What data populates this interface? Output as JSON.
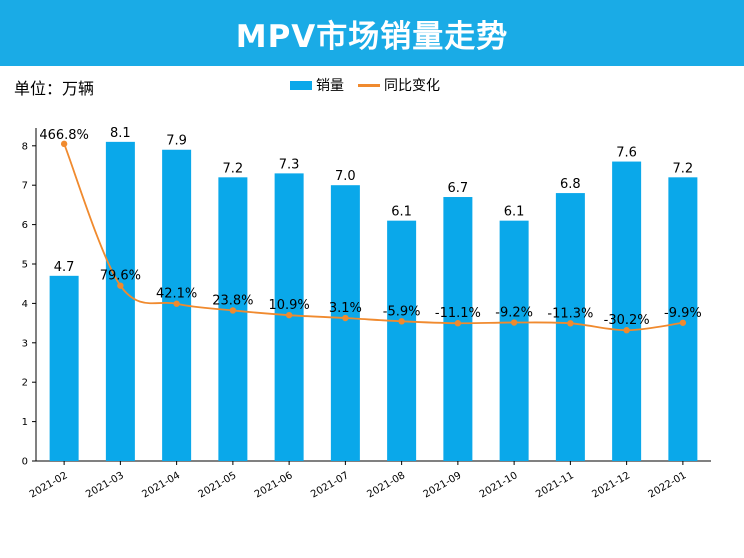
{
  "header": {
    "title": "MPV市场销量走势"
  },
  "unit_label": "单位：万辆",
  "colors": {
    "banner": "#1aabe6",
    "bar": "#0aa8ea",
    "line": "#f08a2e"
  },
  "legend": [
    {
      "name": "销量",
      "kind": "bar"
    },
    {
      "name": "同比变化",
      "kind": "line"
    }
  ],
  "chart_data": {
    "type": "bar",
    "categories": [
      "2021-02",
      "2021-03",
      "2021-04",
      "2021-05",
      "2021-06",
      "2021-07",
      "2021-08",
      "2021-09",
      "2021-10",
      "2021-11",
      "2021-12",
      "2022-01"
    ],
    "series": [
      {
        "name": "销量",
        "type": "bar",
        "values": [
          4.7,
          8.1,
          7.9,
          7.2,
          7.3,
          7.0,
          6.1,
          6.7,
          6.1,
          6.8,
          7.6,
          7.2
        ],
        "labels": [
          "4.7",
          "8.1",
          "7.9",
          "7.2",
          "7.3",
          "7.0",
          "6.1",
          "6.7",
          "6.1",
          "6.8",
          "7.6",
          "7.2"
        ]
      },
      {
        "name": "同比变化",
        "type": "line",
        "values": [
          466.8,
          79.6,
          42.1,
          23.8,
          10.9,
          3.1,
          -5.9,
          -11.1,
          -9.2,
          -11.3,
          -30.2,
          -9.9
        ],
        "labels": [
          "466.8%",
          "79.6%",
          "42.1%",
          "23.8%",
          "10.9%",
          "3.1%",
          "-5.9%",
          "-11.1%",
          "-9.2%",
          "-11.3%",
          "-30.2%",
          "-9.9%"
        ]
      }
    ],
    "yticks": [
      "0",
      "1",
      "2",
      "3",
      "4",
      "5",
      "6",
      "7",
      "8"
    ],
    "ylim": [
      0,
      8.5
    ],
    "grid": false,
    "legend_position": "top-center"
  }
}
